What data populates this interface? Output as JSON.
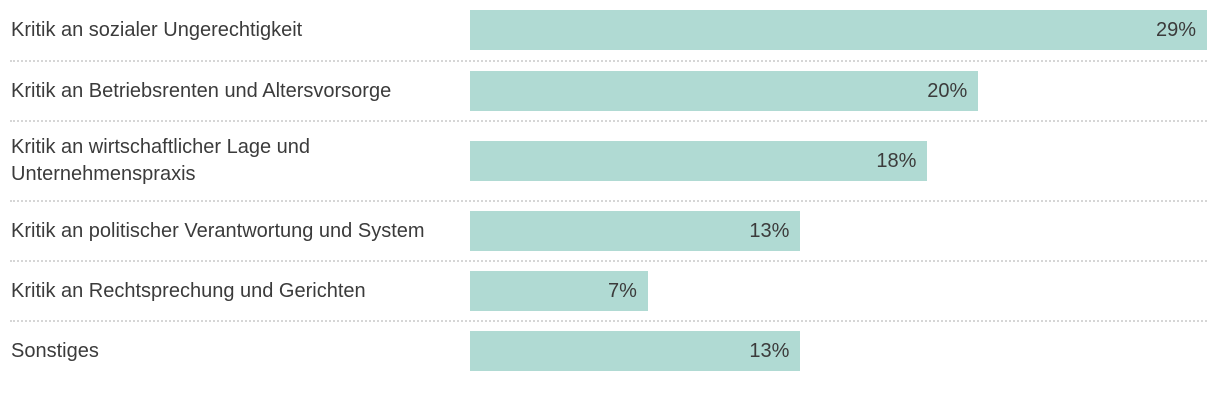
{
  "chart_data": {
    "type": "bar",
    "orientation": "horizontal",
    "title": "",
    "xlabel": "",
    "ylabel": "",
    "categories": [
      "Kritik an sozialer Ungerechtigkeit",
      "Kritik an Betriebsrenten und Altersvorsorge",
      "Kritik an wirtschaftlicher Lage und Unternehmenspraxis",
      "Kritik an politischer Verantwortung und System",
      "Kritik an Rechtsprechung und Gerichten",
      "Sonstiges"
    ],
    "values": [
      29,
      20,
      18,
      13,
      7,
      13
    ],
    "value_labels": [
      "29%",
      "20%",
      "18%",
      "13%",
      "7%",
      "13%"
    ],
    "xlim": [
      0,
      29
    ],
    "grid": false,
    "legend": false,
    "value_label_position": "inside-end",
    "colors": {
      "bar_fill": "#b0dad3",
      "text": "#3b3b3b",
      "separator": "#d6d6d6",
      "background": "#ffffff"
    }
  }
}
